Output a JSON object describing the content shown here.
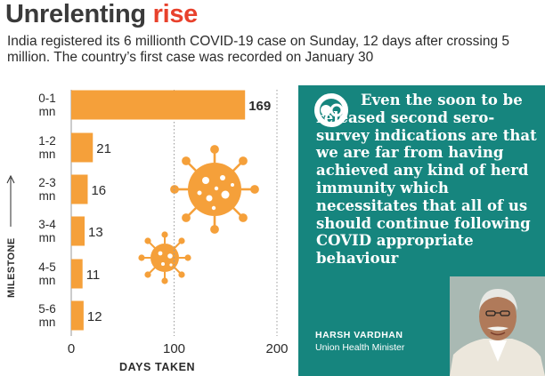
{
  "header": {
    "title_part1": "Unrelenting",
    "title_part2": "rise",
    "subtitle": "India registered its 6 millionth COVID-19 case on Sunday, 12 days after crossing 5 million. The country’s first case was recorded on January 30"
  },
  "colors": {
    "bar": "#f5a03a",
    "panel": "#16857e",
    "title_accent": "#e8412c",
    "virus": "#f5a03a"
  },
  "chart_data": {
    "type": "bar",
    "orientation": "horizontal",
    "categories": [
      [
        "0-1",
        "mn"
      ],
      [
        "1-2",
        "mn"
      ],
      [
        "2-3",
        "mn"
      ],
      [
        "3-4",
        "mn"
      ],
      [
        "4-5",
        "mn"
      ],
      [
        "5-6",
        "mn"
      ]
    ],
    "values": [
      169,
      21,
      16,
      13,
      11,
      12
    ],
    "xlabel": "DAYS TAKEN",
    "ylabel": "MILESTONE",
    "xlim": [
      0,
      200
    ],
    "xticks": [
      0,
      100,
      200
    ],
    "grid": true
  },
  "quote": {
    "text": "Even the soon to be released second sero-survey indications are that we are far from having achieved any kind of herd immunity which necessitates that all of us should continue following COVID appropriate behaviour",
    "quote_icon": "quote-mark-icon",
    "speaker_name": "HARSH VARDHAN",
    "speaker_role": "Union Health Minister"
  }
}
